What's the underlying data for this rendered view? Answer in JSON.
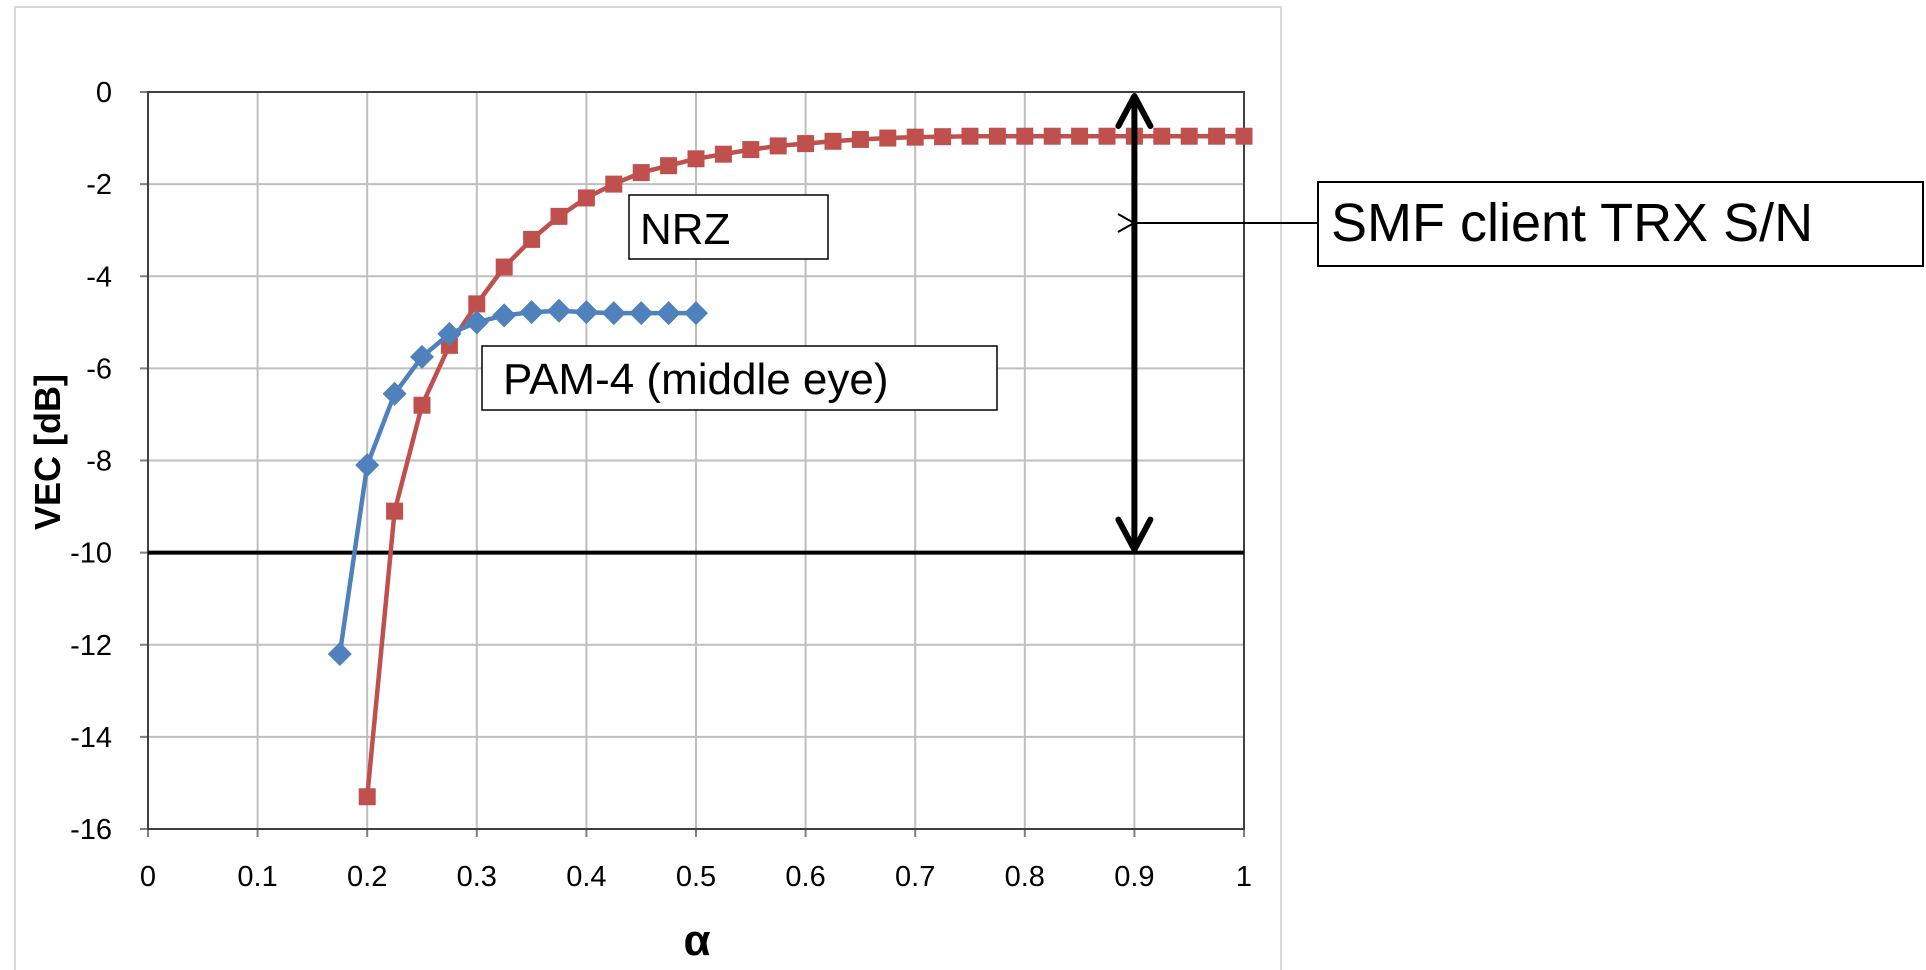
{
  "chart_data": {
    "type": "line",
    "xlabel": "α",
    "ylabel": "VEC [dB]",
    "xlim": [
      0,
      1
    ],
    "ylim": [
      -16,
      0
    ],
    "x_ticks": [
      "0",
      "0.1",
      "0.2",
      "0.3",
      "0.4",
      "0.5",
      "0.6",
      "0.7",
      "0.8",
      "0.9",
      "1"
    ],
    "y_ticks": [
      "0",
      "-2",
      "-4",
      "-6",
      "-8",
      "-10",
      "-12",
      "-14",
      "-16"
    ],
    "grid": true,
    "reference_line_y": -10,
    "series": [
      {
        "name": "NRZ",
        "color": "#C0504D",
        "marker": "square",
        "points": [
          [
            0.2,
            -15.3
          ],
          [
            0.225,
            -9.1
          ],
          [
            0.25,
            -6.8
          ],
          [
            0.275,
            -5.5
          ],
          [
            0.3,
            -4.6
          ],
          [
            0.325,
            -3.8
          ],
          [
            0.35,
            -3.2
          ],
          [
            0.375,
            -2.7
          ],
          [
            0.4,
            -2.3
          ],
          [
            0.425,
            -2.0
          ],
          [
            0.45,
            -1.75
          ],
          [
            0.475,
            -1.6
          ],
          [
            0.5,
            -1.45
          ],
          [
            0.525,
            -1.35
          ],
          [
            0.55,
            -1.25
          ],
          [
            0.575,
            -1.17
          ],
          [
            0.6,
            -1.12
          ],
          [
            0.625,
            -1.07
          ],
          [
            0.65,
            -1.03
          ],
          [
            0.675,
            -1.0
          ],
          [
            0.7,
            -0.98
          ],
          [
            0.725,
            -0.97
          ],
          [
            0.75,
            -0.96
          ],
          [
            0.775,
            -0.96
          ],
          [
            0.8,
            -0.96
          ],
          [
            0.825,
            -0.96
          ],
          [
            0.85,
            -0.96
          ],
          [
            0.875,
            -0.96
          ],
          [
            0.9,
            -0.96
          ],
          [
            0.925,
            -0.96
          ],
          [
            0.95,
            -0.96
          ],
          [
            0.975,
            -0.96
          ],
          [
            1.0,
            -0.96
          ]
        ]
      },
      {
        "name": "PAM-4 (middle eye)",
        "color": "#4F81BD",
        "marker": "diamond",
        "points": [
          [
            0.175,
            -12.2
          ],
          [
            0.2,
            -8.1
          ],
          [
            0.225,
            -6.55
          ],
          [
            0.25,
            -5.75
          ],
          [
            0.275,
            -5.25
          ],
          [
            0.3,
            -5.0
          ],
          [
            0.325,
            -4.85
          ],
          [
            0.35,
            -4.78
          ],
          [
            0.375,
            -4.75
          ],
          [
            0.4,
            -4.78
          ],
          [
            0.425,
            -4.8
          ],
          [
            0.45,
            -4.8
          ],
          [
            0.475,
            -4.8
          ],
          [
            0.5,
            -4.8
          ]
        ]
      }
    ],
    "annotations": {
      "callout": "SMF client TRX S/N",
      "double_arrow_x": 0.9,
      "double_arrow_y": [
        0,
        -10
      ]
    }
  }
}
